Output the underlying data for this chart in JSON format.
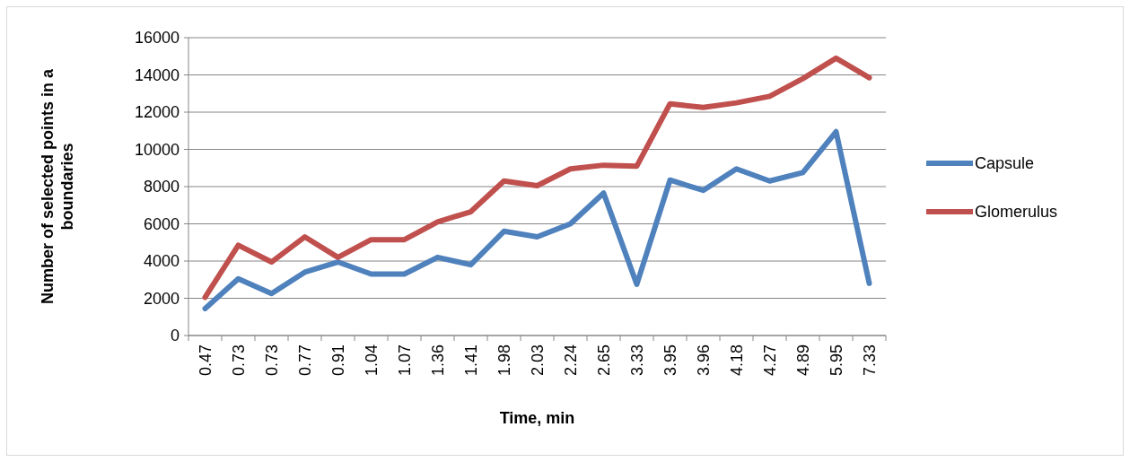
{
  "chart_data": {
    "type": "line",
    "xlabel": "Time, min",
    "ylabel": "Number of selected points in a boundaries",
    "categories": [
      "0.47",
      "0.73",
      "0.73",
      "0.77",
      "0.91",
      "1.04",
      "1.07",
      "1.36",
      "1.41",
      "1.98",
      "2.03",
      "2.24",
      "2.65",
      "3.33",
      "3.95",
      "3.96",
      "4.18",
      "4.27",
      "4.89",
      "5.95",
      "7.33"
    ],
    "series": [
      {
        "name": "Capsule",
        "color": "#4f81bd",
        "values": [
          1450,
          3050,
          2250,
          3400,
          3950,
          3300,
          3300,
          4200,
          3800,
          5600,
          5300,
          6000,
          7650,
          2750,
          8350,
          7800,
          8950,
          8300,
          8750,
          10950,
          2800
        ]
      },
      {
        "name": "Glomerulus",
        "color": "#c0504d",
        "values": [
          2050,
          4850,
          3950,
          5300,
          4200,
          5150,
          5150,
          6100,
          6650,
          8300,
          8050,
          8950,
          9150,
          9100,
          12450,
          12250,
          12500,
          12850,
          13800,
          14900,
          13850
        ]
      }
    ],
    "ylim": [
      0,
      16000
    ],
    "yticks": [
      0,
      2000,
      4000,
      6000,
      8000,
      10000,
      12000,
      14000,
      16000
    ],
    "grid": "y",
    "legend": "right",
    "marker": "none",
    "line_style": "solid"
  }
}
